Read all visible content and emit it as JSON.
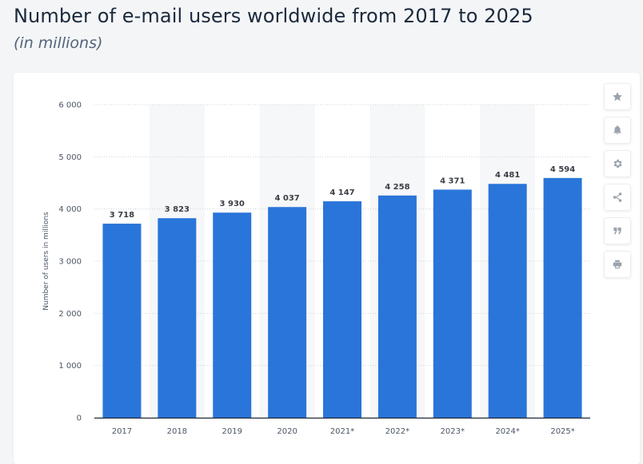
{
  "header": {
    "title": "Number of e-mail users worldwide from 2017 to 2025",
    "subtitle": "(in millions)"
  },
  "toolbar": {
    "buttons": [
      {
        "name": "favorite",
        "icon": "star-icon"
      },
      {
        "name": "notification",
        "icon": "bell-icon"
      },
      {
        "name": "settings",
        "icon": "gear-icon"
      },
      {
        "name": "share",
        "icon": "share-icon"
      },
      {
        "name": "cite",
        "icon": "quote-icon"
      },
      {
        "name": "print",
        "icon": "print-icon"
      }
    ]
  },
  "colors": {
    "bar": "#2a75d9",
    "band": "#f6f7f8",
    "grid": "#cfd4da",
    "axis": "#1f2a37"
  },
  "chart_data": {
    "type": "bar",
    "categories": [
      "2017",
      "2018",
      "2019",
      "2020",
      "2021*",
      "2022*",
      "2023*",
      "2024*",
      "2025*"
    ],
    "values": [
      3718,
      3823,
      3930,
      4037,
      4147,
      4258,
      4371,
      4481,
      4594
    ],
    "value_labels": [
      "3 718",
      "3 823",
      "3 930",
      "4 037",
      "4 147",
      "4 258",
      "4 371",
      "4 481",
      "4 594"
    ],
    "ylabel": "Number of users in millions",
    "ylim": [
      0,
      6000
    ],
    "yticks": [
      0,
      1000,
      2000,
      3000,
      4000,
      5000,
      6000
    ],
    "ytick_labels": [
      "0",
      "1 000",
      "2 000",
      "3 000",
      "4 000",
      "5 000",
      "6 000"
    ],
    "grid": true
  }
}
